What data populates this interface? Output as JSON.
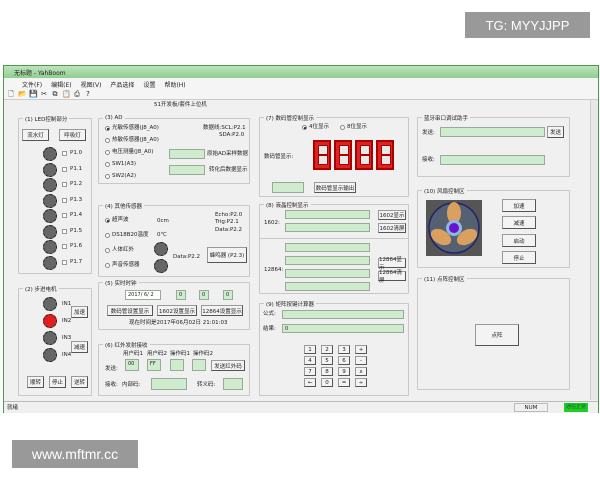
{
  "watermarks": {
    "top": "TG: MYYJJPP",
    "bottom": "www.mftmr.cc"
  },
  "window": {
    "title": "无标题 - YahBoom",
    "heading": "51开发板/套件上位机"
  },
  "menu": [
    "文件(F)",
    "编辑(E)",
    "视图(V)",
    "产品选择",
    "设置",
    "帮助(H)"
  ],
  "toolbar": [
    "new-icon",
    "open-icon",
    "save-icon",
    "cut-icon",
    "copy-icon",
    "paste-icon",
    "print-icon",
    "help-icon"
  ],
  "led": {
    "title": "(1) LED控制部分",
    "flow_btn": "流水灯",
    "breath_btn": "呼吸灯",
    "pins": [
      "P1.0",
      "P1.1",
      "P1.2",
      "P1.3",
      "P1.4",
      "P1.5",
      "P1.6",
      "P1.7"
    ]
  },
  "ad": {
    "title": "(3) AD",
    "options": [
      "光敏传感器(J8_A0)",
      "热敏传感器(J8_A0)",
      "电压测量(J8_A0)",
      "SW1(A3)",
      "SW2(A2)"
    ],
    "selected": 0,
    "bus": "数据线:SCL:P2.1",
    "bus2": "SDA:P2.0",
    "raw_label": "原始AD采样数据",
    "conv_label": "转化后数据显示"
  },
  "other": {
    "title": "(4) 其他传感器",
    "options": [
      "超声波",
      "DS18B20温度",
      "人体红外",
      "声音传感器"
    ],
    "selected": 0,
    "distance": "0cm",
    "temp": "0℃",
    "echo": "Echo:P2.0",
    "trig": "Trig:P2.1",
    "data1": "Data:P2.2",
    "data2": "Data:P2.2",
    "buzzer_btn": "蜂鸣器 (P2.3)"
  },
  "stepper": {
    "title": "(2) 步进电机",
    "pins": [
      "IN1",
      "IN2",
      "IN3",
      "IN4"
    ],
    "active": 1,
    "accel": "加速",
    "decel": "减速",
    "cw": "顺转",
    "stop": "停止",
    "ccw": "逆转"
  },
  "clock": {
    "title": "(5) 实时时钟",
    "date": "2017/ 6/ 2",
    "h": "0",
    "m": "0",
    "s": "0",
    "btn_seg": "数码管设置显示",
    "btn_1602": "1602设置显示",
    "btn_12864": "12864设置显示",
    "now": "现在时间是2017年06月02日 21:01:03"
  },
  "ir": {
    "title": "(6) 红外发射接收",
    "user1": "用户码1",
    "user2": "用户码2",
    "op1": "操作码1",
    "op2": "操作码2",
    "send_label": "发送:",
    "v1": "00",
    "v2": "FF",
    "send_btn": "发送红外码",
    "recv_label": "接收:",
    "inner": "内部码:",
    "trans": "转义码:"
  },
  "seg": {
    "title": "(7) 数码管控制显示",
    "opt4": "4位显示",
    "opt8": "8位显示",
    "label": "数码管显示:",
    "out_btn": "数码管显示输出"
  },
  "lcd": {
    "title": "(8) 液晶控制显示",
    "l1602": "1602:",
    "show1602": "1602显示",
    "clr1602": "1602清屏",
    "l12864": "12864:",
    "show12864": "12864显示",
    "clr12864": "12864清屏"
  },
  "calc": {
    "title": "(9) 矩阵按键计算器",
    "formula": "公式:",
    "result": "结果:",
    "result_val": "0",
    "keys": [
      "1",
      "2",
      "3",
      "+",
      "4",
      "5",
      "6",
      "-",
      "7",
      "8",
      "9",
      "x",
      "←",
      "0",
      "=",
      "÷"
    ]
  },
  "bt": {
    "title": "蓝牙串口调试助手",
    "send": "发送:",
    "send_btn": "发送",
    "recv": "接收:"
  },
  "fan": {
    "title": "(10) 风扇控制区",
    "accel": "加速",
    "decel": "减速",
    "start": "启动",
    "stop": "停止"
  },
  "matrix": {
    "title": "(11) 点阵控制区",
    "btn": "点阵"
  },
  "status": {
    "ready": "就绪",
    "num": "NUM",
    "comm": "通信正常",
    "comm_color": "#22cc22"
  }
}
